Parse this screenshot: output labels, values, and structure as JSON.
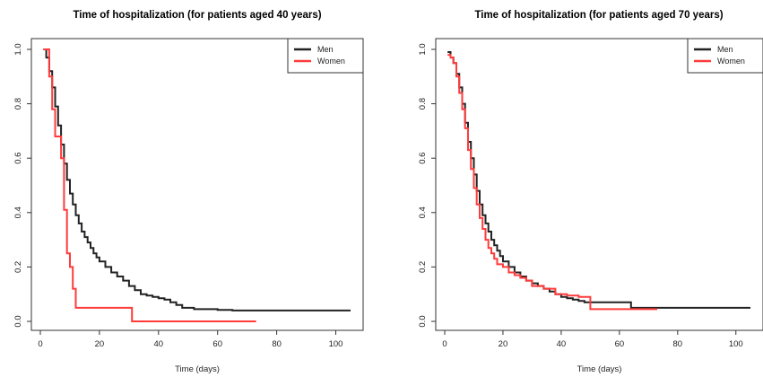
{
  "colors": {
    "men": "#222222",
    "women": "#ff3b3b",
    "axis": "#333333"
  },
  "chart_data": [
    {
      "type": "line",
      "step": true,
      "title": "Time of hospitalization (for patients aged 40 years)",
      "xlabel": "Time (days)",
      "ylabel": "",
      "xlim": [
        0,
        105
      ],
      "ylim": [
        0,
        1
      ],
      "xticks": [
        "0",
        "20",
        "40",
        "60",
        "80",
        "100"
      ],
      "yticks": [
        "0.0",
        "0.2",
        "0.4",
        "0.6",
        "0.8",
        "1.0"
      ],
      "legend_position": "top-right",
      "grid": false,
      "series": [
        {
          "name": "Men",
          "color": "#222222",
          "x": [
            1,
            2,
            3,
            4,
            5,
            6,
            7,
            8,
            9,
            10,
            11,
            12,
            13,
            14,
            15,
            16,
            17,
            18,
            19,
            20,
            22,
            24,
            26,
            28,
            30,
            32,
            34,
            36,
            38,
            40,
            42,
            44,
            46,
            48,
            52,
            56,
            60,
            65,
            70,
            80,
            90,
            100,
            105
          ],
          "y": [
            1.0,
            0.97,
            0.92,
            0.86,
            0.79,
            0.72,
            0.65,
            0.58,
            0.52,
            0.47,
            0.43,
            0.39,
            0.36,
            0.33,
            0.31,
            0.29,
            0.27,
            0.25,
            0.235,
            0.22,
            0.2,
            0.18,
            0.165,
            0.15,
            0.13,
            0.115,
            0.1,
            0.095,
            0.09,
            0.085,
            0.08,
            0.07,
            0.06,
            0.05,
            0.045,
            0.045,
            0.042,
            0.04,
            0.04,
            0.04,
            0.04,
            0.04,
            0.04
          ]
        },
        {
          "name": "Women",
          "color": "#ff3b3b",
          "x": [
            1,
            3,
            4,
            5,
            7,
            8,
            9,
            10,
            11,
            12,
            31,
            73
          ],
          "y": [
            1.0,
            0.9,
            0.78,
            0.68,
            0.6,
            0.41,
            0.25,
            0.2,
            0.12,
            0.05,
            0.0,
            0.0
          ]
        }
      ]
    },
    {
      "type": "line",
      "step": true,
      "title": "Time of hospitalization (for patients aged 70 years)",
      "xlabel": "Time (days)",
      "ylabel": "",
      "xlim": [
        0,
        105
      ],
      "ylim": [
        0,
        1
      ],
      "xticks": [
        "0",
        "20",
        "40",
        "60",
        "80",
        "100"
      ],
      "yticks": [
        "0.0",
        "0.2",
        "0.4",
        "0.6",
        "0.8",
        "1.0"
      ],
      "legend_position": "top-right",
      "grid": false,
      "series": [
        {
          "name": "Men",
          "color": "#222222",
          "x": [
            1,
            2,
            3,
            4,
            5,
            6,
            7,
            8,
            9,
            10,
            11,
            12,
            13,
            14,
            15,
            16,
            17,
            18,
            19,
            20,
            22,
            24,
            26,
            28,
            30,
            32,
            34,
            36,
            38,
            40,
            42,
            44,
            46,
            48,
            50,
            55,
            60,
            64,
            70,
            80,
            90,
            105
          ],
          "y": [
            0.99,
            0.97,
            0.95,
            0.91,
            0.86,
            0.8,
            0.73,
            0.66,
            0.6,
            0.54,
            0.48,
            0.43,
            0.39,
            0.36,
            0.33,
            0.3,
            0.28,
            0.26,
            0.24,
            0.22,
            0.2,
            0.18,
            0.165,
            0.15,
            0.14,
            0.13,
            0.12,
            0.11,
            0.1,
            0.09,
            0.085,
            0.08,
            0.075,
            0.07,
            0.07,
            0.07,
            0.07,
            0.05,
            0.05,
            0.05,
            0.05,
            0.05
          ]
        },
        {
          "name": "Women",
          "color": "#ff3b3b",
          "x": [
            1,
            2,
            3,
            4,
            5,
            6,
            7,
            8,
            9,
            10,
            11,
            12,
            13,
            14,
            15,
            16,
            17,
            18,
            20,
            22,
            24,
            26,
            28,
            30,
            34,
            38,
            42,
            46,
            50,
            55,
            60,
            65,
            73
          ],
          "y": [
            0.98,
            0.97,
            0.95,
            0.9,
            0.84,
            0.78,
            0.71,
            0.63,
            0.56,
            0.49,
            0.43,
            0.38,
            0.34,
            0.3,
            0.27,
            0.25,
            0.23,
            0.21,
            0.2,
            0.18,
            0.17,
            0.16,
            0.15,
            0.13,
            0.12,
            0.1,
            0.095,
            0.09,
            0.045,
            0.045,
            0.045,
            0.045,
            0.045
          ]
        }
      ]
    }
  ]
}
